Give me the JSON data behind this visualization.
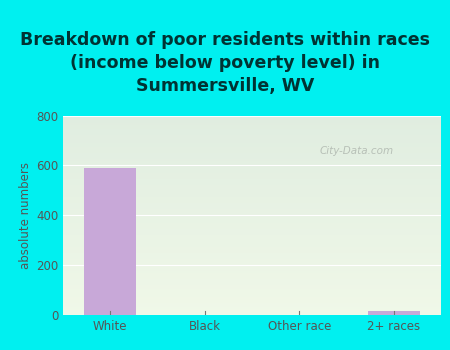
{
  "title": "Breakdown of poor residents within races\n(income below poverty level) in\nSummersville, WV",
  "categories": [
    "White",
    "Black",
    "Other race",
    "2+ races"
  ],
  "values": [
    591,
    0,
    0,
    18
  ],
  "bar_color": "#c8a8d8",
  "ylabel": "absolute numbers",
  "ylim": [
    0,
    800
  ],
  "yticks": [
    0,
    200,
    400,
    600,
    800
  ],
  "background_color": "#00f0f0",
  "plot_bg_top": "#e0ede0",
  "plot_bg_bottom": "#f0f8e8",
  "watermark": "City-Data.com",
  "title_fontsize": 12.5,
  "title_color": "#003333",
  "tick_color": "#555555",
  "label_fontsize": 8.5
}
